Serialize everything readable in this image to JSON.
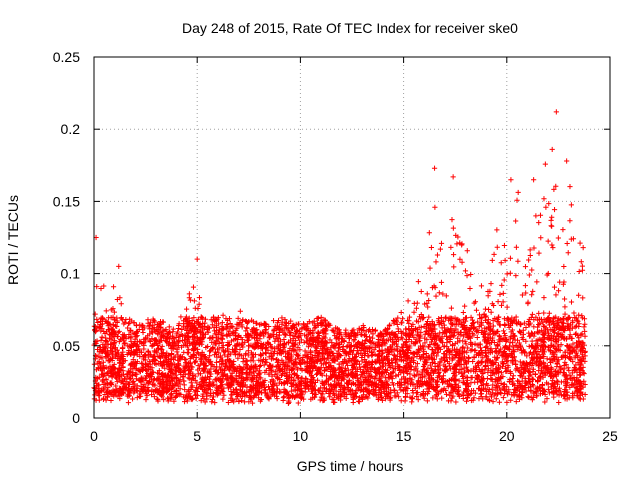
{
  "chart_data": {
    "type": "scatter",
    "title": "Day 248 of 2015, Rate Of TEC Index for receiver ske0",
    "xlabel": "GPS time / hours",
    "ylabel": "ROTI / TECUs",
    "xlim": [
      0,
      25
    ],
    "ylim": [
      0,
      0.25
    ],
    "xticks": [
      0,
      5,
      10,
      15,
      20,
      25
    ],
    "xtick_labels": [
      "0",
      "5",
      "10",
      "15",
      "20",
      "25"
    ],
    "yticks": [
      0,
      0.05,
      0.1,
      0.15,
      0.2,
      0.25
    ],
    "ytick_labels": [
      "0",
      "0.05",
      "0.1",
      "0.15",
      "0.2",
      "0.25"
    ],
    "grid": true,
    "marker": "+",
    "series": [
      {
        "name": "ROTI",
        "color": "#ff0000",
        "envelope_hours": [
          0,
          0.2,
          0.5,
          1,
          1.5,
          2,
          3,
          4,
          4.5,
          5,
          5.3,
          6,
          7,
          8,
          9,
          10,
          11,
          12,
          13,
          14,
          15,
          15.5,
          16,
          16.5,
          17,
          17.5,
          18,
          18.5,
          19,
          19.5,
          20,
          20.5,
          21,
          21.5,
          22,
          22.5,
          23,
          23.5,
          23.8
        ],
        "envelope_max": [
          0.1,
          0.125,
          0.09,
          0.095,
          0.075,
          0.065,
          0.07,
          0.06,
          0.085,
          0.1,
          0.085,
          0.07,
          0.075,
          0.065,
          0.07,
          0.065,
          0.07,
          0.06,
          0.065,
          0.06,
          0.075,
          0.095,
          0.1,
          0.17,
          0.12,
          0.16,
          0.13,
          0.095,
          0.09,
          0.14,
          0.12,
          0.16,
          0.13,
          0.15,
          0.2,
          0.17,
          0.175,
          0.13,
          0.115
        ],
        "sample_points": [
          {
            "x": 0.1,
            "y": 0.125
          },
          {
            "x": 1.2,
            "y": 0.105
          },
          {
            "x": 5.0,
            "y": 0.11
          },
          {
            "x": 16.5,
            "y": 0.173
          },
          {
            "x": 17.4,
            "y": 0.167
          },
          {
            "x": 20.2,
            "y": 0.165
          },
          {
            "x": 21.3,
            "y": 0.165
          },
          {
            "x": 22.2,
            "y": 0.186
          },
          {
            "x": 22.4,
            "y": 0.212
          },
          {
            "x": 22.9,
            "y": 0.178
          },
          {
            "x": 23.7,
            "y": 0.118
          }
        ]
      }
    ]
  }
}
